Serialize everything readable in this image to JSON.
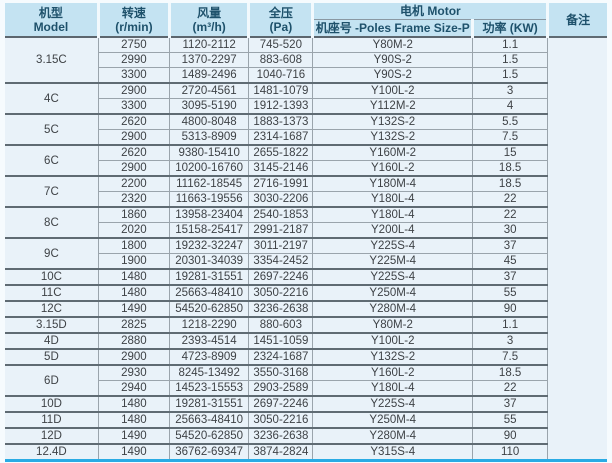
{
  "accent_colors": {
    "header_bg": "#c4e3f2",
    "header_text": "#1e516b",
    "body_bg": "#e9f2f9",
    "bottom_rule": "#29abe4"
  },
  "table": {
    "headers": {
      "model_zh": "机型",
      "model_en": "Model",
      "speed_zh": "转速",
      "speed_unit": "(r/min)",
      "flow_zh": "风量",
      "flow_unit": "(m³/h)",
      "pressure_zh": "全压",
      "pressure_unit": "(Pa)",
      "motor": "电机 Motor",
      "frame": "机座号 -Poles Frame Size-P",
      "power": "功率 (KW)",
      "remark": "备注"
    },
    "groups": [
      {
        "model": "3.15C",
        "rows": [
          {
            "speed": "2750",
            "flow": "1120-2112",
            "pressure": "745-520",
            "frame": "Y80M-2",
            "power": "1.1"
          },
          {
            "speed": "2990",
            "flow": "1370-2297",
            "pressure": "883-608",
            "frame": "Y90S-2",
            "power": "1.5"
          },
          {
            "speed": "3300",
            "flow": "1489-2496",
            "pressure": "1040-716",
            "frame": "Y90S-2",
            "power": "1.5"
          }
        ]
      },
      {
        "model": "4C",
        "rows": [
          {
            "speed": "2900",
            "flow": "2720-4561",
            "pressure": "1481-1079",
            "frame": "Y100L-2",
            "power": "3"
          },
          {
            "speed": "3300",
            "flow": "3095-5190",
            "pressure": "1912-1393",
            "frame": "Y112M-2",
            "power": "4"
          }
        ]
      },
      {
        "model": "5C",
        "rows": [
          {
            "speed": "2620",
            "flow": "4800-8048",
            "pressure": "1883-1373",
            "frame": "Y132S-2",
            "power": "5.5"
          },
          {
            "speed": "2900",
            "flow": "5313-8909",
            "pressure": "2314-1687",
            "frame": "Y132S-2",
            "power": "7.5"
          }
        ]
      },
      {
        "model": "6C",
        "rows": [
          {
            "speed": "2620",
            "flow": "9380-15410",
            "pressure": "2655-1822",
            "frame": "Y160M-2",
            "power": "15"
          },
          {
            "speed": "2900",
            "flow": "10200-16760",
            "pressure": "3145-2146",
            "frame": "Y160L-2",
            "power": "18.5"
          }
        ]
      },
      {
        "model": "7C",
        "rows": [
          {
            "speed": "2200",
            "flow": "11162-18545",
            "pressure": "2716-1991",
            "frame": "Y180M-4",
            "power": "18.5"
          },
          {
            "speed": "2320",
            "flow": "11663-19556",
            "pressure": "3030-2206",
            "frame": "Y180L-4",
            "power": "22"
          }
        ]
      },
      {
        "model": "8C",
        "rows": [
          {
            "speed": "1860",
            "flow": "13958-23404",
            "pressure": "2540-1853",
            "frame": "Y180L-4",
            "power": "22"
          },
          {
            "speed": "2020",
            "flow": "15158-25417",
            "pressure": "2991-2187",
            "frame": "Y200L-4",
            "power": "30"
          }
        ]
      },
      {
        "model": "9C",
        "rows": [
          {
            "speed": "1800",
            "flow": "19232-32247",
            "pressure": "3011-2197",
            "frame": "Y225S-4",
            "power": "37"
          },
          {
            "speed": "1900",
            "flow": "20301-34039",
            "pressure": "3354-2452",
            "frame": "Y225M-4",
            "power": "45"
          }
        ]
      },
      {
        "model": "10C",
        "rows": [
          {
            "speed": "1480",
            "flow": "19281-31551",
            "pressure": "2697-2246",
            "frame": "Y225S-4",
            "power": "37"
          }
        ]
      },
      {
        "model": "11C",
        "rows": [
          {
            "speed": "1480",
            "flow": "25663-48410",
            "pressure": "3050-2216",
            "frame": "Y250M-4",
            "power": "55"
          }
        ]
      },
      {
        "model": "12C",
        "rows": [
          {
            "speed": "1490",
            "flow": "54520-62850",
            "pressure": "3236-2638",
            "frame": "Y280M-4",
            "power": "90"
          }
        ]
      },
      {
        "model": "3.15D",
        "rows": [
          {
            "speed": "2825",
            "flow": "1218-2290",
            "pressure": "880-603",
            "frame": "Y80M-2",
            "power": "1.1"
          }
        ]
      },
      {
        "model": "4D",
        "rows": [
          {
            "speed": "2880",
            "flow": "2393-4514",
            "pressure": "1451-1059",
            "frame": "Y100L-2",
            "power": "3"
          }
        ]
      },
      {
        "model": "5D",
        "rows": [
          {
            "speed": "2900",
            "flow": "4723-8909",
            "pressure": "2324-1687",
            "frame": "Y132S-2",
            "power": "7.5"
          }
        ]
      },
      {
        "model": "6D",
        "rows": [
          {
            "speed": "2930",
            "flow": "8245-13492",
            "pressure": "3550-3168",
            "frame": "Y160L-2",
            "power": "18.5"
          },
          {
            "speed": "2940",
            "flow": "14523-15553",
            "pressure": "2903-2589",
            "frame": "Y180L-4",
            "power": "22"
          }
        ]
      },
      {
        "model": "10D",
        "rows": [
          {
            "speed": "1480",
            "flow": "19281-31551",
            "pressure": "2697-2246",
            "frame": "Y225S-4",
            "power": "37"
          }
        ]
      },
      {
        "model": "11D",
        "rows": [
          {
            "speed": "1480",
            "flow": "25663-48410",
            "pressure": "3050-2216",
            "frame": "Y250M-4",
            "power": "55"
          }
        ]
      },
      {
        "model": "12D",
        "rows": [
          {
            "speed": "1490",
            "flow": "54520-62850",
            "pressure": "3236-2638",
            "frame": "Y280M-4",
            "power": "90"
          }
        ]
      },
      {
        "model": "12.4D",
        "rows": [
          {
            "speed": "1490",
            "flow": "36762-69347",
            "pressure": "3874-2824",
            "frame": "Y315S-4",
            "power": "110"
          }
        ]
      }
    ]
  }
}
